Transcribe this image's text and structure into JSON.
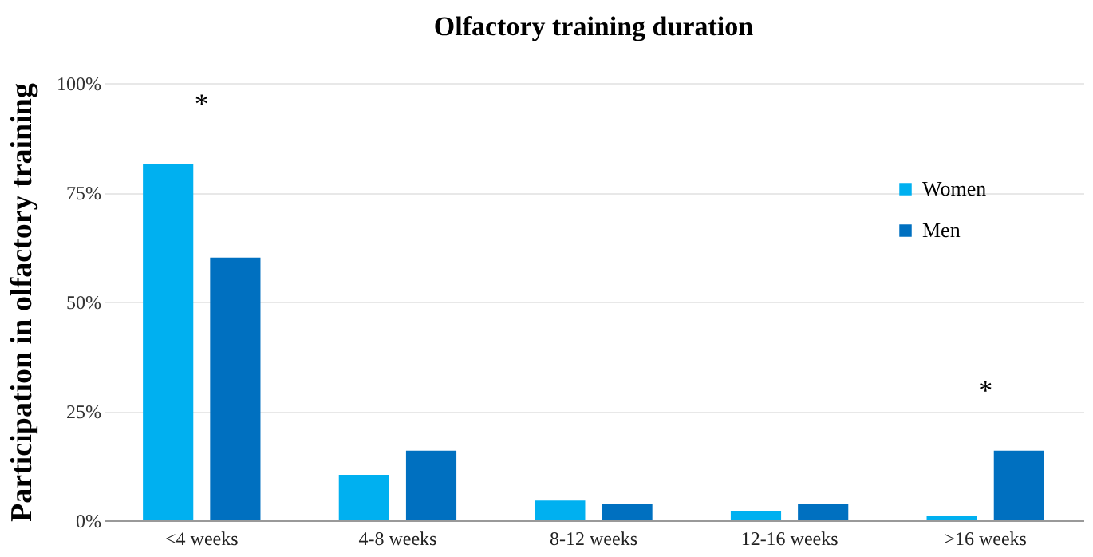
{
  "chart_data": {
    "type": "bar",
    "title": "Olfactory training duration",
    "ylabel": "Participation in olfactory training",
    "categories": [
      "<4 weeks",
      "4-8 weeks",
      "8-12 weeks",
      "12-16 weeks",
      ">16 weeks"
    ],
    "series": [
      {
        "name": "Women",
        "color": "#00b0f0",
        "values": [
          81.4,
          10.4,
          4.5,
          2.2,
          1.0
        ]
      },
      {
        "name": "Men",
        "color": "#0070c0",
        "values": [
          60.1,
          15.9,
          3.8,
          3.8,
          15.9
        ]
      }
    ],
    "ylim": [
      0,
      100
    ],
    "yticks": [
      {
        "value": 0,
        "label": "0%"
      },
      {
        "value": 25,
        "label": "25%"
      },
      {
        "value": 50,
        "label": "50%"
      },
      {
        "value": 75,
        "label": "75%"
      },
      {
        "value": 100,
        "label": "100%"
      }
    ],
    "grid": "y",
    "legend": "top right",
    "annotations": [
      "*",
      "*"
    ]
  }
}
